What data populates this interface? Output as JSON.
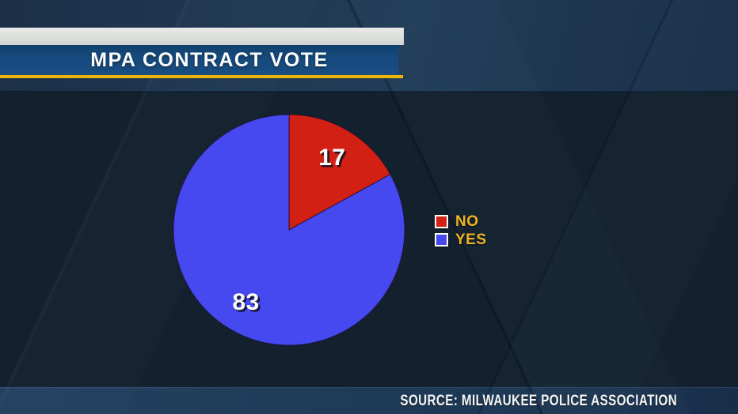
{
  "header": {
    "title": "MPA CONTRACT VOTE"
  },
  "source": {
    "label": "SOURCE: MILWAUKEE POLICE ASSOCIATION"
  },
  "colors": {
    "accent_gold": "#edb50a",
    "title_bar_blue": "#17497c",
    "title_bar_gray": "#dcdedd",
    "background_navy": "#13212e",
    "band_blue": "#22405e",
    "pie_no_red": "#d22114",
    "pie_yes_blue": "#4649f0",
    "legend_text_gold": "#f0b41e",
    "value_label_white": "#ffffff"
  },
  "chart_data": {
    "type": "pie",
    "title": "MPA CONTRACT VOTE",
    "slices": [
      {
        "label": "NO",
        "value": 17,
        "color": "#d22114"
      },
      {
        "label": "YES",
        "value": 83,
        "color": "#4649f0"
      }
    ],
    "start_angle_deg": 0,
    "direction": "clockwise",
    "value_labels_position": "inside",
    "legend_position": "right",
    "source": "SOURCE: MILWAUKEE POLICE ASSOCIATION"
  }
}
